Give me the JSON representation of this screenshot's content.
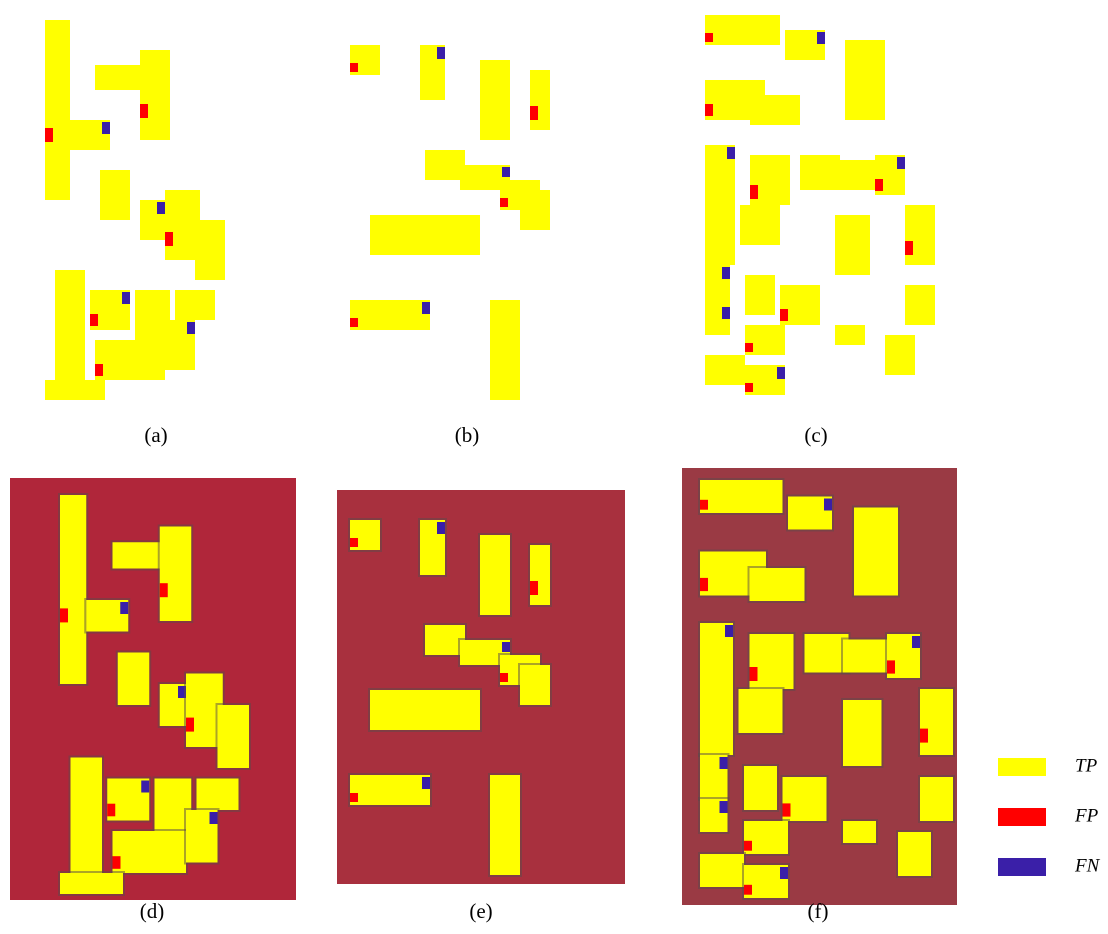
{
  "figure": {
    "panels": [
      {
        "label": "(a)"
      },
      {
        "label": "(b)"
      },
      {
        "label": "(c)"
      },
      {
        "label": "(d)"
      },
      {
        "label": "(e)"
      },
      {
        "label": "(f)"
      }
    ],
    "legend": [
      {
        "label": "TP",
        "color": "#ffff00"
      },
      {
        "label": "FP",
        "color": "#ff0000"
      },
      {
        "label": "FN",
        "color": "#3a1fa8"
      }
    ]
  }
}
